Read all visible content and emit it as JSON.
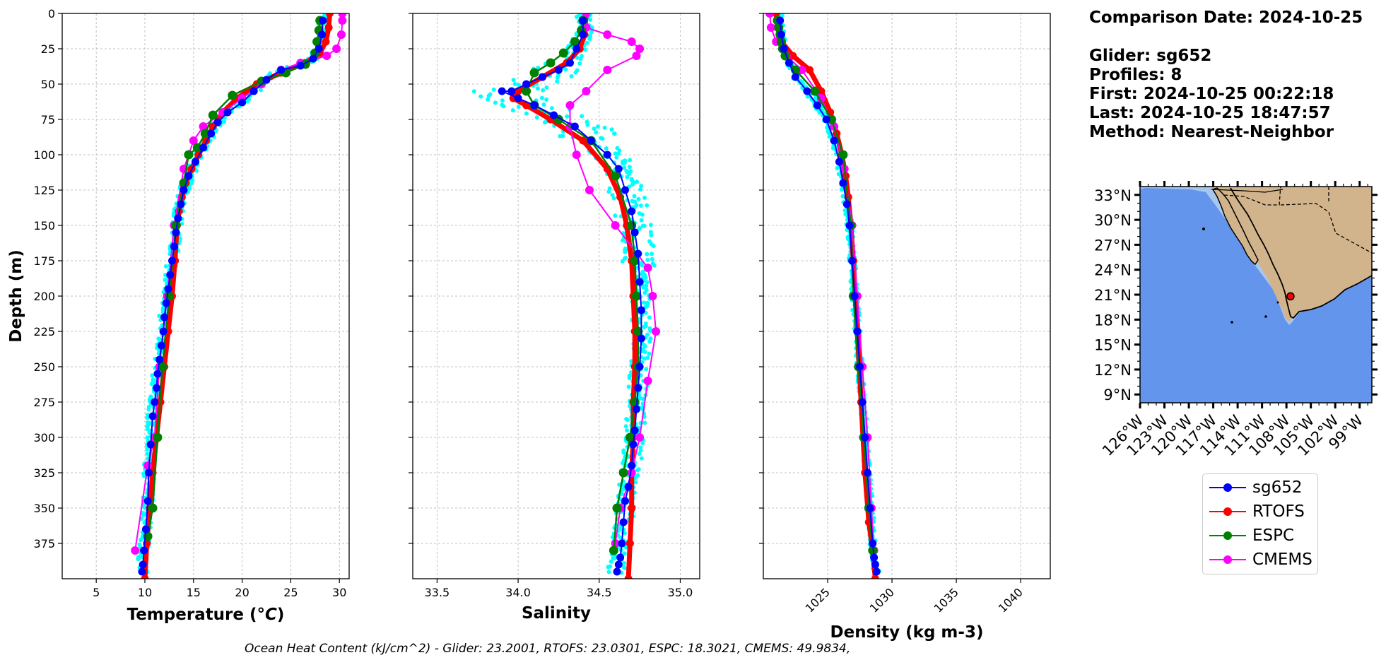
{
  "chart_data": [
    {
      "type": "line",
      "xlabel": "Temperature ($^{o}C$)",
      "ylabel": "Depth (m)",
      "xlim": [
        1.5,
        31
      ],
      "ylim": [
        400,
        0
      ],
      "xticks": [
        "5",
        "10",
        "15",
        "20",
        "25",
        "30"
      ],
      "yticks": [
        "0",
        "25",
        "50",
        "75",
        "100",
        "125",
        "150",
        "175",
        "200",
        "225",
        "250",
        "275",
        "300",
        "325",
        "350",
        "375"
      ],
      "grid": true,
      "series": [
        {
          "name": "sg652",
          "x": [
            28.3,
            28.2,
            27.9,
            27.3,
            26.0,
            24.0,
            22.5,
            21.2,
            20.0,
            18.5,
            17.5,
            16.8,
            16.0,
            15.2,
            14.5,
            14.0,
            13.7,
            13.4,
            13.2,
            13.0,
            12.8,
            12.6,
            12.4,
            12.2,
            12.0,
            11.9,
            11.7,
            11.5,
            11.3,
            11.2,
            11.0,
            10.8,
            10.6,
            10.4,
            10.3,
            10.1,
            9.9,
            9.8,
            9.7
          ],
          "y": [
            5,
            15,
            25,
            32,
            37,
            40,
            47,
            55,
            63,
            70,
            77,
            85,
            95,
            105,
            115,
            125,
            135,
            145,
            155,
            165,
            175,
            185,
            195,
            205,
            215,
            225,
            235,
            245,
            255,
            265,
            275,
            285,
            305,
            325,
            345,
            365,
            380,
            390,
            395
          ]
        },
        {
          "name": "RTOFS",
          "x": [
            29.0,
            28.9,
            28.6,
            28.0,
            26.5,
            24.0,
            21.5,
            19.5,
            18.0,
            17.0,
            16.3,
            15.5,
            14.8,
            14.2,
            13.8,
            13.5,
            13.3,
            13.1,
            12.8,
            12.4,
            12.0,
            11.6,
            11.2,
            10.8,
            10.5,
            10.2,
            10.0
          ],
          "y": [
            0,
            10,
            20,
            28,
            35,
            42,
            50,
            60,
            70,
            80,
            90,
            100,
            110,
            120,
            130,
            140,
            150,
            175,
            200,
            225,
            250,
            275,
            300,
            325,
            350,
            375,
            400
          ]
        },
        {
          "name": "ESPC",
          "x": [
            28.0,
            27.9,
            27.7,
            27.5,
            26.5,
            24.5,
            22.0,
            19.0,
            17.0,
            16.2,
            15.4,
            14.5,
            14.0,
            13.2,
            12.5,
            11.8,
            11.3,
            10.8,
            10.3
          ],
          "y": [
            5,
            12,
            20,
            28,
            36,
            42,
            48,
            58,
            72,
            85,
            95,
            100,
            120,
            150,
            200,
            250,
            300,
            350,
            370
          ]
        },
        {
          "name": "CMEMS",
          "x": [
            30.3,
            30.3,
            30.2,
            29.7,
            28.7,
            26.0,
            24.0,
            22.0,
            20.0,
            18.0,
            16.0,
            15.0,
            14.5,
            14.0,
            13.0,
            12.3,
            11.5,
            11.0,
            10.3,
            9.0
          ],
          "y": [
            0,
            5,
            15,
            25,
            30,
            35,
            40,
            50,
            60,
            70,
            80,
            90,
            100,
            110,
            150,
            200,
            250,
            300,
            320,
            380
          ]
        }
      ],
      "series_style": {
        "sg652": "#0000ff",
        "RTOFS": "#ff0000",
        "ESPC": "#008000",
        "CMEMS": "#ff00ff",
        "glider_profiles": "#00ffff"
      }
    },
    {
      "type": "line",
      "xlabel": "Salinity",
      "xlim": [
        33.35,
        35.12
      ],
      "ylim": [
        400,
        0
      ],
      "xticks": [
        "33.5",
        "34.0",
        "34.5",
        "35.0"
      ],
      "grid": true,
      "series": [
        {
          "name": "sg652",
          "x": [
            34.4,
            34.4,
            34.36,
            34.32,
            34.25,
            34.15,
            34.05,
            33.96,
            33.9,
            34.0,
            34.1,
            34.22,
            34.35,
            34.45,
            34.55,
            34.62,
            34.66,
            34.7,
            34.72,
            34.74,
            34.75,
            34.76,
            34.76,
            34.75,
            34.74,
            34.73,
            34.72,
            34.71,
            34.7,
            34.68,
            34.66,
            34.65,
            34.64,
            34.63,
            34.62,
            34.61
          ],
          "y": [
            5,
            15,
            25,
            35,
            40,
            45,
            50,
            55,
            55,
            60,
            65,
            72,
            80,
            90,
            100,
            110,
            125,
            140,
            155,
            170,
            190,
            210,
            230,
            250,
            265,
            280,
            295,
            305,
            320,
            335,
            345,
            360,
            375,
            385,
            390,
            395
          ]
        },
        {
          "name": "RTOFS",
          "x": [
            34.42,
            34.41,
            34.38,
            34.3,
            34.15,
            34.0,
            33.97,
            34.05,
            34.2,
            34.4,
            34.55,
            34.63,
            34.67,
            34.7,
            34.71,
            34.72,
            34.72,
            34.71,
            34.71,
            34.7,
            34.7,
            34.69,
            34.68
          ],
          "y": [
            0,
            15,
            25,
            35,
            45,
            55,
            60,
            65,
            75,
            90,
            110,
            130,
            150,
            175,
            200,
            225,
            250,
            275,
            300,
            325,
            350,
            375,
            400
          ]
        },
        {
          "name": "ESPC",
          "x": [
            34.4,
            34.39,
            34.35,
            34.28,
            34.2,
            34.1,
            34.05,
            34.1,
            34.25,
            34.45,
            34.6,
            34.7,
            34.72,
            34.73,
            34.74,
            34.74,
            34.72,
            34.69,
            34.65,
            34.61,
            34.59
          ],
          "y": [
            5,
            12,
            20,
            28,
            35,
            42,
            55,
            65,
            75,
            90,
            115,
            150,
            175,
            200,
            225,
            250,
            275,
            300,
            325,
            350,
            380
          ]
        },
        {
          "name": "CMEMS",
          "x": [
            34.42,
            34.42,
            34.55,
            34.7,
            34.75,
            34.73,
            34.55,
            34.42,
            34.32,
            34.32,
            34.36,
            34.44,
            34.6,
            34.8,
            34.83,
            34.85,
            34.8,
            34.75,
            34.7,
            34.63,
            34.6,
            34.59
          ],
          "y": [
            0,
            10,
            15,
            20,
            25,
            30,
            40,
            55,
            65,
            80,
            100,
            125,
            150,
            180,
            200,
            225,
            260,
            300,
            325,
            350,
            375,
            380
          ]
        }
      ],
      "series_style": {
        "sg652": "#0000ff",
        "RTOFS": "#ff0000",
        "ESPC": "#008000",
        "CMEMS": "#ff00ff",
        "glider_profiles": "#00ffff"
      }
    },
    {
      "type": "line",
      "xlabel": "Density (kg m-3)",
      "xlim": [
        1020.0,
        1042.3
      ],
      "ylim": [
        400,
        0
      ],
      "xticks": [
        "1025",
        "1030",
        "1035",
        "1040"
      ],
      "grid": true,
      "series": [
        {
          "name": "sg652",
          "x": [
            1021.3,
            1021.4,
            1021.6,
            1022.0,
            1022.5,
            1023.4,
            1024.2,
            1024.9,
            1025.5,
            1025.9,
            1026.2,
            1026.5,
            1026.7,
            1026.9,
            1027.1,
            1027.3,
            1027.5,
            1027.7,
            1027.9,
            1028.1,
            1028.3,
            1028.5,
            1028.6,
            1028.7,
            1028.8
          ],
          "y": [
            5,
            15,
            25,
            35,
            45,
            55,
            65,
            75,
            90,
            105,
            120,
            135,
            150,
            175,
            200,
            225,
            250,
            275,
            300,
            325,
            350,
            375,
            385,
            390,
            395
          ]
        },
        {
          "name": "RTOFS",
          "x": [
            1021.0,
            1021.1,
            1021.4,
            1022.3,
            1023.6,
            1024.5,
            1025.2,
            1025.7,
            1026.1,
            1026.4,
            1026.6,
            1026.8,
            1027.0,
            1027.3,
            1027.6,
            1027.9,
            1028.2,
            1028.5,
            1028.7
          ],
          "y": [
            0,
            10,
            20,
            30,
            40,
            55,
            70,
            85,
            100,
            115,
            130,
            150,
            175,
            225,
            275,
            325,
            360,
            380,
            400
          ]
        },
        {
          "name": "ESPC",
          "x": [
            1021.1,
            1021.2,
            1021.3,
            1021.4,
            1021.5,
            1021.7,
            1022.5,
            1024.0,
            1025.3,
            1026.2,
            1026.8,
            1027.0,
            1027.4,
            1027.8,
            1028.2,
            1028.5
          ],
          "y": [
            5,
            10,
            15,
            20,
            25,
            30,
            40,
            55,
            75,
            100,
            150,
            200,
            250,
            300,
            350,
            380
          ]
        },
        {
          "name": "CMEMS",
          "x": [
            1020.5,
            1020.6,
            1021.0,
            1021.8,
            1023.0,
            1024.5,
            1025.5,
            1026.3,
            1026.9,
            1027.3,
            1027.7,
            1028.1,
            1028.4,
            1028.6
          ],
          "y": [
            0,
            10,
            20,
            30,
            40,
            60,
            80,
            110,
            150,
            200,
            250,
            300,
            350,
            380
          ]
        }
      ],
      "series_style": {
        "sg652": "#0000ff",
        "RTOFS": "#ff0000",
        "ESPC": "#008000",
        "CMEMS": "#ff00ff",
        "glider_profiles": "#00ffff"
      }
    },
    {
      "type": "map",
      "lat_labels": [
        "33°N",
        "30°N",
        "27°N",
        "24°N",
        "21°N",
        "18°N",
        "15°N",
        "12°N",
        "9°N"
      ],
      "lon_labels": [
        "126°W",
        "123°W",
        "120°W",
        "117°W",
        "114°W",
        "111°W",
        "108°W",
        "105°W",
        "102°W",
        "99°W"
      ],
      "extent": {
        "lon": [
          -126.0,
          -97.5
        ],
        "lat": [
          8.0,
          34.0
        ]
      },
      "glider_location": {
        "lon": -107.5,
        "lat": 20.8
      },
      "colors": {
        "ocean": "#6495ed",
        "shelf": "#a9c6ee",
        "land": "#d2b48c"
      }
    }
  ],
  "info": {
    "comparison_date": "Comparison Date: 2024-10-25",
    "glider": "Glider: sg652",
    "profiles": "Profiles: 8",
    "first": "First: 2024-10-25 00:22:18",
    "last": "Last: 2024-10-25 18:47:57",
    "method": "Method: Nearest-Neighbor"
  },
  "legend": {
    "position": "below-map",
    "items": [
      {
        "label": "sg652",
        "color": "#0000ff"
      },
      {
        "label": "RTOFS",
        "color": "#ff0000"
      },
      {
        "label": "ESPC",
        "color": "#008000"
      },
      {
        "label": "CMEMS",
        "color": "#ff00ff"
      }
    ]
  },
  "footer": "Ocean Heat Content (kJ/cm^2) - Glider: 23.2001,  RTOFS: 23.0301,  ESPC: 18.3021,  CMEMS: 49.9834,"
}
